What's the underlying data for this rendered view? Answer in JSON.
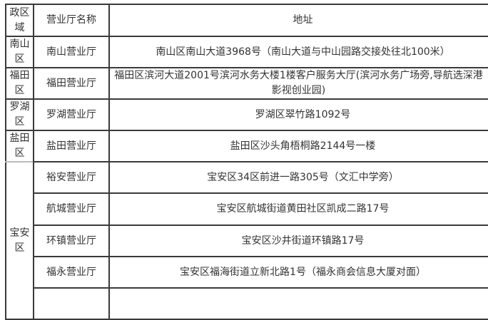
{
  "header": {
    "region": "政区域",
    "name": "营业厅名称",
    "address": "地址"
  },
  "rows": [
    {
      "region": "南山区",
      "name": "南山营业厅",
      "address": "南山区南山大道3968号（南山大道与中山园路交接处往北100米）"
    },
    {
      "region": "福田区",
      "name": "福田营业厅",
      "address": "福田区滨河大道2001号滨河水务大楼1楼客户服务大厅(滨河水务广场旁,导航选深港影视创业园)"
    },
    {
      "region": "罗湖区",
      "name": "罗湖营业厅",
      "address": "罗湖区翠竹路1092号"
    },
    {
      "region": "盐田区",
      "name": "盐田营业厅",
      "address": "盐田区沙头角梧桐路2144号一楼"
    }
  ],
  "baoan": {
    "region": "宝安区",
    "rows": [
      {
        "name": "裕安营业厅",
        "address": "宝安区34区前进一路305号（文汇中学旁）"
      },
      {
        "name": "航城营业厅",
        "address": "宝安区航城街道黄田社区凯成二路17号"
      },
      {
        "name": "环镇营业厅",
        "address": "宝安区沙井街道环镇路17号"
      },
      {
        "name": "福永营业厅",
        "address": "宝安区福海街道立新北路1号（福永商会信息大厦对面）"
      }
    ]
  }
}
